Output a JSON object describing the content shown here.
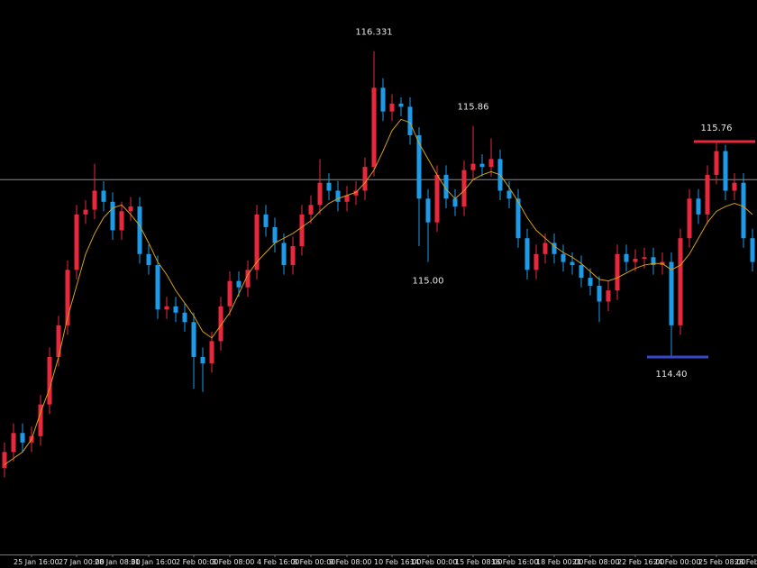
{
  "chart_data": {
    "type": "candlestick",
    "categories": [
      null,
      null,
      null,
      "25 Jan 16:00",
      null,
      null,
      null,
      null,
      "27 Jan 00:00",
      null,
      null,
      null,
      "28 Jan 08:00",
      null,
      null,
      null,
      "31 Jan 16:00",
      null,
      null,
      null,
      null,
      "2 Feb 00:00",
      null,
      null,
      null,
      "3 Feb 08:00",
      null,
      null,
      null,
      null,
      "4 Feb 16:00",
      null,
      null,
      null,
      "8 Feb 00:00",
      null,
      null,
      null,
      "9 Feb 08:00",
      null,
      null,
      null,
      null,
      "10 Feb 16:00",
      null,
      null,
      null,
      "14 Feb 00:00",
      null,
      null,
      null,
      null,
      "15 Feb 08:00",
      null,
      null,
      null,
      "16 Feb 16:00",
      null,
      null,
      null,
      null,
      "18 Feb 00:00",
      null,
      null,
      null,
      "21 Feb 08:00",
      null,
      null,
      null,
      null,
      "22 Feb 16:00",
      null,
      null,
      null,
      "24 Feb 00:00",
      null,
      null,
      null,
      null,
      "25 Feb 08:00",
      null,
      null,
      null,
      "28 Feb"
    ],
    "open": [
      113.7,
      113.8,
      113.92,
      113.86,
      113.9,
      114.1,
      114.4,
      114.6,
      114.95,
      115.3,
      115.33,
      115.45,
      115.38,
      115.2,
      115.32,
      115.35,
      115.05,
      114.98,
      114.7,
      114.72,
      114.68,
      114.62,
      114.4,
      114.36,
      114.5,
      114.72,
      114.88,
      114.84,
      114.95,
      115.3,
      115.22,
      115.12,
      114.98,
      115.1,
      115.3,
      115.36,
      115.5,
      115.45,
      115.38,
      115.42,
      115.45,
      115.6,
      116.1,
      115.95,
      116.0,
      115.98,
      115.8,
      115.4,
      115.25,
      115.55,
      115.4,
      115.35,
      115.58,
      115.62,
      115.6,
      115.65,
      115.45,
      115.4,
      115.15,
      114.95,
      115.05,
      115.12,
      115.05,
      115.0,
      114.98,
      114.9,
      114.85,
      114.75,
      114.82,
      115.05,
      115.0,
      115.02,
      115.03,
      114.98,
      115.0,
      114.6,
      115.15,
      115.4,
      115.3,
      115.55,
      115.7,
      115.45,
      115.5,
      115.15
    ],
    "high": [
      113.86,
      113.98,
      113.98,
      113.96,
      114.16,
      114.46,
      114.66,
      115.01,
      115.36,
      115.39,
      115.62,
      115.51,
      115.44,
      115.38,
      115.41,
      115.41,
      115.11,
      115.04,
      114.78,
      114.78,
      114.74,
      114.68,
      114.46,
      114.56,
      114.78,
      114.94,
      114.94,
      115.01,
      115.36,
      115.36,
      115.28,
      115.18,
      115.16,
      115.36,
      115.42,
      115.65,
      115.56,
      115.51,
      115.48,
      115.51,
      115.66,
      116.331,
      116.16,
      116.06,
      116.04,
      116.04,
      115.85,
      115.46,
      115.61,
      115.61,
      115.46,
      115.64,
      115.86,
      115.68,
      115.78,
      115.71,
      115.51,
      115.46,
      115.21,
      115.11,
      115.18,
      115.18,
      115.11,
      115.06,
      115.04,
      114.96,
      114.91,
      114.88,
      115.11,
      115.11,
      115.08,
      115.09,
      115.09,
      115.06,
      115.06,
      115.21,
      115.46,
      115.46,
      115.61,
      115.76,
      115.74,
      115.56,
      115.56,
      115.21
    ],
    "low": [
      113.64,
      113.74,
      113.8,
      113.8,
      113.84,
      114.04,
      114.34,
      114.54,
      114.89,
      115.24,
      115.27,
      115.32,
      115.14,
      115.14,
      115.26,
      114.99,
      114.92,
      114.64,
      114.64,
      114.62,
      114.56,
      114.2,
      114.18,
      114.3,
      114.44,
      114.66,
      114.78,
      114.78,
      114.89,
      115.16,
      115.06,
      114.92,
      114.92,
      115.04,
      115.24,
      115.3,
      115.39,
      115.32,
      115.32,
      115.36,
      115.39,
      115.54,
      115.89,
      115.89,
      115.92,
      115.74,
      115.1,
      115.0,
      115.19,
      115.34,
      115.29,
      115.29,
      115.52,
      115.54,
      115.54,
      115.39,
      115.34,
      115.09,
      114.89,
      114.89,
      114.99,
      114.99,
      114.94,
      114.92,
      114.84,
      114.79,
      114.62,
      114.69,
      114.76,
      114.94,
      114.94,
      114.96,
      114.92,
      114.92,
      114.4,
      114.54,
      115.09,
      115.24,
      115.24,
      115.49,
      115.39,
      115.39,
      115.09,
      114.94
    ],
    "close": [
      113.8,
      113.92,
      113.86,
      113.9,
      114.1,
      114.4,
      114.6,
      114.95,
      115.3,
      115.33,
      115.45,
      115.38,
      115.2,
      115.32,
      115.35,
      115.05,
      114.98,
      114.7,
      114.72,
      114.68,
      114.62,
      114.4,
      114.36,
      114.5,
      114.72,
      114.88,
      114.84,
      114.95,
      115.3,
      115.22,
      115.12,
      114.98,
      115.1,
      115.3,
      115.36,
      115.5,
      115.45,
      115.38,
      115.42,
      115.45,
      115.6,
      116.1,
      115.95,
      116.0,
      115.98,
      115.8,
      115.4,
      115.25,
      115.55,
      115.4,
      115.35,
      115.58,
      115.62,
      115.6,
      115.65,
      115.45,
      115.4,
      115.15,
      114.95,
      115.05,
      115.12,
      115.05,
      115.0,
      114.98,
      114.9,
      114.85,
      114.75,
      114.82,
      115.05,
      115.0,
      115.02,
      115.03,
      114.98,
      115.0,
      114.6,
      115.15,
      115.4,
      115.3,
      115.55,
      115.7,
      115.45,
      115.5,
      115.15,
      115.0
    ],
    "moving_average": [
      113.72,
      113.76,
      113.8,
      113.88,
      114.05,
      114.2,
      114.4,
      114.65,
      114.85,
      115.05,
      115.18,
      115.28,
      115.34,
      115.36,
      115.3,
      115.23,
      115.12,
      115.0,
      114.92,
      114.82,
      114.74,
      114.66,
      114.56,
      114.52,
      114.6,
      114.68,
      114.8,
      114.92,
      115.0,
      115.06,
      115.12,
      115.15,
      115.18,
      115.22,
      115.26,
      115.32,
      115.37,
      115.4,
      115.42,
      115.44,
      115.5,
      115.58,
      115.7,
      115.83,
      115.9,
      115.88,
      115.75,
      115.65,
      115.55,
      115.46,
      115.4,
      115.45,
      115.52,
      115.55,
      115.57,
      115.55,
      115.47,
      115.38,
      115.28,
      115.2,
      115.15,
      115.1,
      115.06,
      115.03,
      114.99,
      114.94,
      114.89,
      114.88,
      114.9,
      114.93,
      114.96,
      114.98,
      114.99,
      114.99,
      114.95,
      114.98,
      115.05,
      115.15,
      115.25,
      115.32,
      115.35,
      115.37,
      115.35,
      115.3
    ],
    "up_color": "#e8283c",
    "down_color": "#1e9be8",
    "ma_color": "#d4a017",
    "reference_line": {
      "value": 115.52,
      "color": "#8c8c8c"
    },
    "annotations": [
      {
        "value": 116.331
      },
      {
        "value": 115.86
      },
      {
        "value": 115,
        "label": "115.00"
      },
      {
        "value": 114.4,
        "label": "114.40",
        "color": "#3c46c8"
      },
      {
        "value": 115.76,
        "color": "#e8283c"
      }
    ],
    "ylim": [
      113.153,
      116.654
    ]
  }
}
